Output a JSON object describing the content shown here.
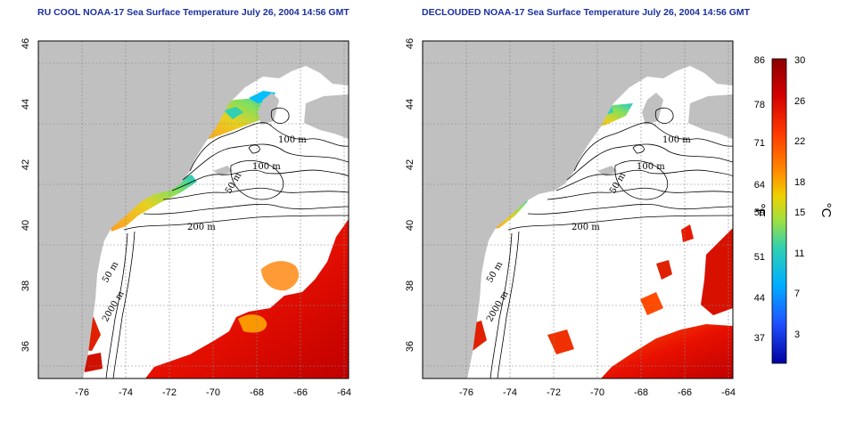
{
  "left_panel": {
    "title": "RU COOL NOAA-17 Sea Surface Temperature July 26, 2004 14:56 GMT",
    "contour_labels": [
      "100 m",
      "100 m",
      "50 m",
      "200 m",
      "50 m",
      "2000 m"
    ]
  },
  "right_panel": {
    "title": "DECLOUDED NOAA-17 Sea Surface Temperature July 26, 2004 14:56 GMT",
    "contour_labels": [
      "100 m",
      "100 m",
      "50 m",
      "200 m",
      "50 m",
      "2000 m"
    ]
  },
  "map_axes": {
    "lat_ticks": [
      "46",
      "44",
      "42",
      "40",
      "38",
      "36"
    ],
    "lon_ticks": [
      "-76",
      "-74",
      "-72",
      "-70",
      "-68",
      "-66",
      "-64"
    ]
  },
  "colorbar": {
    "fahrenheit_ticks": [
      "86",
      "78",
      "71",
      "64",
      "59",
      "51",
      "44",
      "37"
    ],
    "celsius_ticks": [
      "30",
      "26",
      "22",
      "18",
      "15",
      "11",
      "7",
      "3"
    ],
    "fahrenheit_unit": "°F",
    "celsius_unit": "°C",
    "colors": [
      "#8b0000",
      "#d40000",
      "#ff3c00",
      "#ff8c00",
      "#f0d000",
      "#a0e040",
      "#30d0b0",
      "#00b0ff",
      "#2050ff",
      "#0000a0"
    ]
  },
  "colors": {
    "land": "#c0c0c0",
    "ocean_clear": "#ffffff",
    "title": "#1a2fa0"
  }
}
